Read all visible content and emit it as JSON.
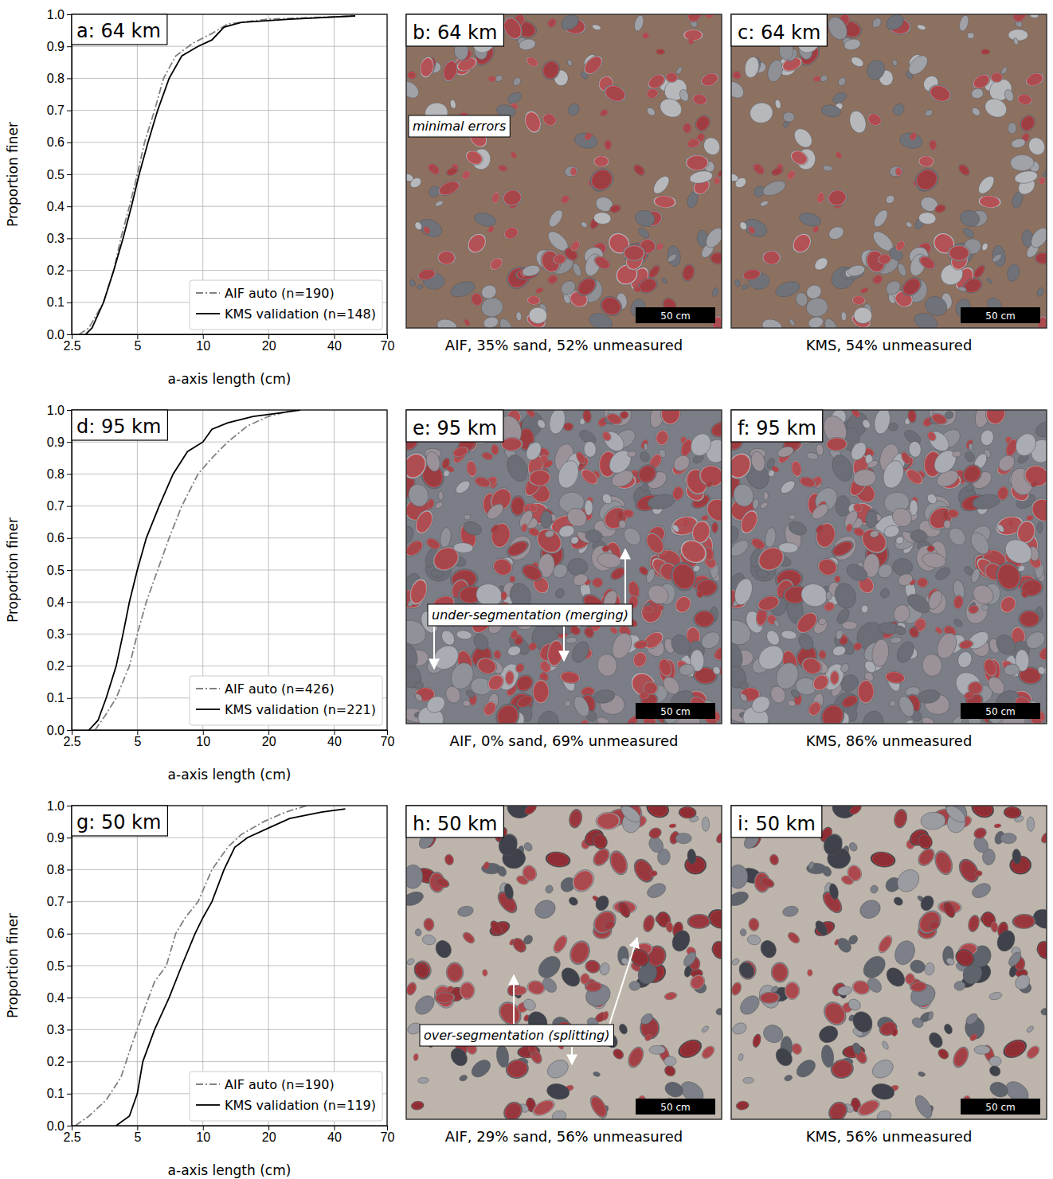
{
  "chart_data": [
    {
      "type": "line",
      "title": "a: 64 km",
      "x_label": "a-axis length (cm)",
      "y_label": "Proportion finer",
      "log": "x",
      "grid": true,
      "legend": "lower right",
      "xlim": [
        2.5,
        70
      ],
      "xticks": [
        2.5,
        5,
        10,
        20,
        40,
        70
      ],
      "ylim": [
        0,
        1
      ],
      "yticks": [
        {
          "value": 0,
          "label": "0.0"
        },
        {
          "value": 0.1,
          "label": "0.1"
        },
        {
          "value": 0.2,
          "label": "0.2"
        },
        {
          "value": 0.3,
          "label": "0.3"
        },
        {
          "value": 0.4,
          "label": "0.4"
        },
        {
          "value": 0.5,
          "label": "0.5"
        },
        {
          "value": 0.6,
          "label": "0.6"
        },
        {
          "value": 0.7,
          "label": "0.7"
        },
        {
          "value": 0.8,
          "label": "0.8"
        },
        {
          "value": 0.9,
          "label": "0.9"
        },
        {
          "value": 1,
          "label": "1.0"
        }
      ],
      "series": [
        {
          "name": "AIF auto (n=190)",
          "color": "#808080",
          "line_style": "dashdot",
          "x": [
            2.7,
            3.0,
            3.5,
            3.9,
            4.2,
            4.6,
            5.0,
            5.4,
            6.0,
            6.6,
            7.5,
            9.0,
            11,
            13,
            20,
            50
          ],
          "values": [
            0,
            0.02,
            0.1,
            0.2,
            0.3,
            0.4,
            0.5,
            0.6,
            0.7,
            0.8,
            0.87,
            0.91,
            0.94,
            0.97,
            0.985,
            0.995
          ]
        },
        {
          "name": "KMS validation (n=148)",
          "color": "#000000",
          "line_style": "solid",
          "x": [
            2.9,
            3.1,
            3.5,
            3.9,
            4.3,
            4.7,
            5.1,
            5.6,
            6.2,
            7.0,
            8.0,
            9.5,
            11,
            12.5,
            15,
            25,
            50
          ],
          "values": [
            0,
            0.02,
            0.1,
            0.2,
            0.3,
            0.4,
            0.5,
            0.6,
            0.7,
            0.8,
            0.87,
            0.9,
            0.92,
            0.96,
            0.975,
            0.985,
            0.995
          ]
        }
      ]
    },
    {
      "type": "line",
      "title": "d: 95 km",
      "x_label": "a-axis length (cm)",
      "y_label": "Proportion finer",
      "log": "x",
      "grid": true,
      "legend": "lower right",
      "xlim": [
        2.5,
        70
      ],
      "xticks": [
        2.5,
        5,
        10,
        20,
        40,
        70
      ],
      "ylim": [
        0,
        1
      ],
      "yticks": [
        {
          "value": 0,
          "label": "0.0"
        },
        {
          "value": 0.1,
          "label": "0.1"
        },
        {
          "value": 0.2,
          "label": "0.2"
        },
        {
          "value": 0.3,
          "label": "0.3"
        },
        {
          "value": 0.4,
          "label": "0.4"
        },
        {
          "value": 0.5,
          "label": "0.5"
        },
        {
          "value": 0.6,
          "label": "0.6"
        },
        {
          "value": 0.7,
          "label": "0.7"
        },
        {
          "value": 0.8,
          "label": "0.8"
        },
        {
          "value": 0.9,
          "label": "0.9"
        },
        {
          "value": 1,
          "label": "1.0"
        }
      ],
      "series": [
        {
          "name": "AIF auto (n=426)",
          "color": "#808080",
          "line_style": "dashdot",
          "x": [
            3.2,
            3.6,
            4.0,
            4.6,
            5.0,
            5.5,
            6.2,
            7.0,
            8.0,
            9.5,
            11,
            13,
            16,
            20,
            26
          ],
          "values": [
            0,
            0.05,
            0.1,
            0.2,
            0.3,
            0.4,
            0.5,
            0.6,
            0.7,
            0.8,
            0.85,
            0.9,
            0.95,
            0.98,
            1
          ]
        },
        {
          "name": "KMS validation (n=221)",
          "color": "#000000",
          "line_style": "solid",
          "x": [
            3.0,
            3.3,
            3.6,
            4.0,
            4.3,
            4.6,
            5.0,
            5.5,
            6.3,
            7.3,
            8.5,
            10,
            11,
            13,
            17,
            22,
            28
          ],
          "values": [
            0,
            0.03,
            0.1,
            0.2,
            0.3,
            0.4,
            0.5,
            0.6,
            0.7,
            0.8,
            0.87,
            0.9,
            0.94,
            0.96,
            0.98,
            0.99,
            1
          ]
        }
      ]
    },
    {
      "type": "line",
      "title": "g: 50 km",
      "x_label": "a-axis length (cm)",
      "y_label": "Proportion finer",
      "log": "x",
      "grid": true,
      "legend": "lower right",
      "xlim": [
        2.5,
        70
      ],
      "xticks": [
        2.5,
        5,
        10,
        20,
        40,
        70
      ],
      "ylim": [
        0,
        1
      ],
      "yticks": [
        {
          "value": 0,
          "label": "0.0"
        },
        {
          "value": 0.1,
          "label": "0.1"
        },
        {
          "value": 0.2,
          "label": "0.2"
        },
        {
          "value": 0.3,
          "label": "0.3"
        },
        {
          "value": 0.4,
          "label": "0.4"
        },
        {
          "value": 0.5,
          "label": "0.5"
        },
        {
          "value": 0.6,
          "label": "0.6"
        },
        {
          "value": 0.7,
          "label": "0.7"
        },
        {
          "value": 0.8,
          "label": "0.8"
        },
        {
          "value": 0.9,
          "label": "0.9"
        },
        {
          "value": 1,
          "label": "1.0"
        }
      ],
      "series": [
        {
          "name": "AIF auto (n=190)",
          "color": "#808080",
          "line_style": "dashdot",
          "x": [
            2.6,
            3.0,
            3.6,
            4.2,
            4.7,
            5.3,
            6.0,
            6.8,
            7.5,
            8.3,
            9.5,
            11,
            13,
            15,
            19,
            24,
            30
          ],
          "values": [
            0,
            0.03,
            0.08,
            0.15,
            0.25,
            0.35,
            0.45,
            0.5,
            0.6,
            0.65,
            0.7,
            0.8,
            0.87,
            0.91,
            0.95,
            0.98,
            1
          ]
        },
        {
          "name": "KMS validation (n=119)",
          "color": "#000000",
          "line_style": "solid",
          "x": [
            4.0,
            4.6,
            5.0,
            5.3,
            6.0,
            7.0,
            8.0,
            9.2,
            10,
            11,
            12.5,
            14,
            16,
            20,
            25,
            35,
            45
          ],
          "values": [
            0,
            0.03,
            0.1,
            0.2,
            0.3,
            0.4,
            0.5,
            0.6,
            0.65,
            0.7,
            0.8,
            0.87,
            0.9,
            0.93,
            0.96,
            0.98,
            0.99
          ]
        }
      ]
    }
  ],
  "image_panels": [
    {
      "label": "b: 64 km",
      "caption": "AIF, 35% sand, 52% unmeasured",
      "annotation": "minimal errors",
      "scale_bar": "50 cm"
    },
    {
      "label": "c: 64 km",
      "caption": "KMS, 54% unmeasured",
      "scale_bar": "50 cm"
    },
    {
      "label": "e: 95 km",
      "caption": "AIF, 0% sand, 69% unmeasured",
      "annotation": "under-segmentation (merging)",
      "scale_bar": "50 cm"
    },
    {
      "label": "f: 95 km",
      "caption": "KMS, 86% unmeasured",
      "scale_bar": "50 cm"
    },
    {
      "label": "h: 50 km",
      "caption": "AIF, 29% sand, 56% unmeasured",
      "annotation": "over-segmentation (splitting)",
      "scale_bar": "50 cm"
    },
    {
      "label": "i: 50 km",
      "caption": "KMS, 56% unmeasured",
      "scale_bar": "50 cm"
    }
  ]
}
